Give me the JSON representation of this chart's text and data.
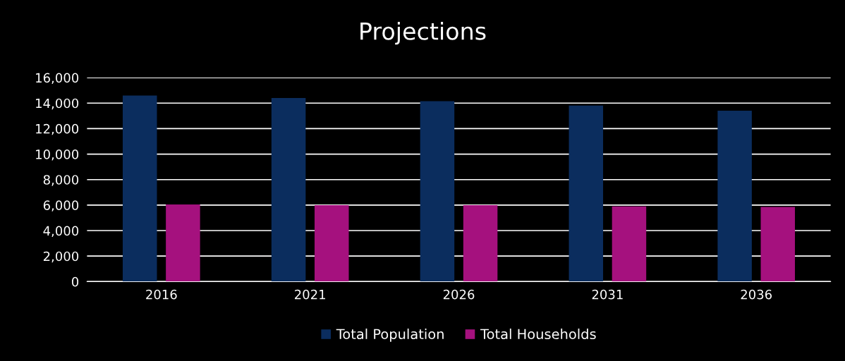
{
  "chart_data": {
    "type": "bar",
    "title": "Projections",
    "categories": [
      "2016",
      "2021",
      "2026",
      "2031",
      "2036"
    ],
    "series": [
      {
        "name": "Total Population",
        "color": "#0b2d5e",
        "values": [
          14600,
          14400,
          14150,
          13800,
          13400
        ]
      },
      {
        "name": "Total Households",
        "color": "#a5117e",
        "values": [
          6050,
          6000,
          6000,
          5900,
          5850
        ]
      }
    ],
    "ylim": [
      0,
      16000
    ],
    "yticks": [
      {
        "value": 0,
        "label": "0"
      },
      {
        "value": 2000,
        "label": "2,000"
      },
      {
        "value": 4000,
        "label": "4,000"
      },
      {
        "value": 6000,
        "label": "6,000"
      },
      {
        "value": 8000,
        "label": "8,000"
      },
      {
        "value": 10000,
        "label": "10,000"
      },
      {
        "value": 12000,
        "label": "12,000"
      },
      {
        "value": 14000,
        "label": "14,000"
      },
      {
        "value": 16000,
        "label": "16,000"
      }
    ],
    "grid": "y",
    "legend": "bottom"
  }
}
